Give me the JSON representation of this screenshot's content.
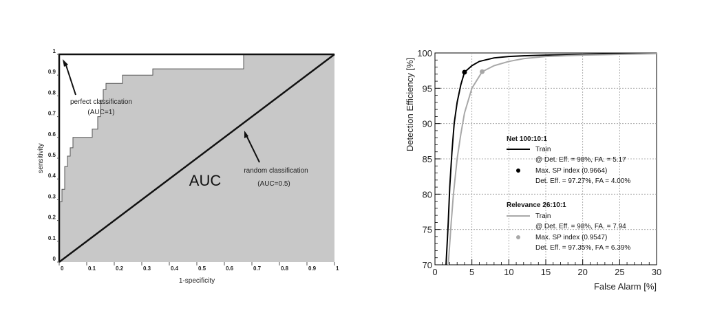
{
  "chart_data": [
    {
      "type": "line",
      "xlabel": "1-specificity",
      "ylabel": "sensitivity",
      "xlim": [
        0,
        1
      ],
      "ylim": [
        0,
        1
      ],
      "x_ticks": [
        "0",
        "0.1",
        "0.2",
        "0.3",
        "0.4",
        "0.5",
        "0.6",
        "0.7",
        "0.8",
        "0.9",
        "1"
      ],
      "y_ticks": [
        "0",
        "0.1",
        "0.2",
        "0.3",
        "0.4",
        "0.5",
        "0.6",
        "0.7",
        "0.8",
        "0.9",
        "1"
      ],
      "area_label": "AUC",
      "series": [
        {
          "role": "empirical ROC curve (area shaded)",
          "points": [
            [
              0,
              0
            ],
            [
              0,
              0.29
            ],
            [
              0.01,
              0.29
            ],
            [
              0.01,
              0.35
            ],
            [
              0.02,
              0.35
            ],
            [
              0.02,
              0.46
            ],
            [
              0.03,
              0.46
            ],
            [
              0.03,
              0.51
            ],
            [
              0.04,
              0.51
            ],
            [
              0.04,
              0.55
            ],
            [
              0.05,
              0.55
            ],
            [
              0.05,
              0.6
            ],
            [
              0.12,
              0.6
            ],
            [
              0.12,
              0.64
            ],
            [
              0.14,
              0.64
            ],
            [
              0.14,
              0.7
            ],
            [
              0.15,
              0.7
            ],
            [
              0.15,
              0.78
            ],
            [
              0.16,
              0.78
            ],
            [
              0.16,
              0.83
            ],
            [
              0.17,
              0.83
            ],
            [
              0.17,
              0.86
            ],
            [
              0.23,
              0.86
            ],
            [
              0.23,
              0.9
            ],
            [
              0.34,
              0.9
            ],
            [
              0.34,
              0.93
            ],
            [
              0.67,
              0.93
            ],
            [
              0.67,
              1
            ],
            [
              1,
              1
            ]
          ]
        },
        {
          "role": "perfect classification",
          "points": [
            [
              0,
              0
            ],
            [
              0,
              1
            ],
            [
              1,
              1
            ]
          ]
        },
        {
          "role": "random classification",
          "points": [
            [
              0,
              0
            ],
            [
              1,
              1
            ]
          ]
        }
      ],
      "annotations": [
        {
          "line1": "perfect classification",
          "line2": "(AUC=1)"
        },
        {
          "line1": "random classification",
          "line2": "(AUC=0.5)"
        }
      ]
    },
    {
      "type": "line",
      "xlabel": "False Alarm [%]",
      "ylabel": "Detection Efficiency [%]",
      "xlim": [
        0,
        30
      ],
      "ylim": [
        70,
        100
      ],
      "x_ticks": [
        0,
        5,
        10,
        15,
        20,
        25,
        30
      ],
      "y_ticks": [
        70,
        75,
        80,
        85,
        90,
        95,
        100
      ],
      "grid": true,
      "legend_position": "bottom-right",
      "legend": {
        "group1": {
          "title": "Net 100:10:1",
          "line_label": "Train",
          "line_detail": "@ Det. Eff. = 98%, FA. = 5.17",
          "marker_label": "Max. SP index (0.9664)",
          "marker_detail": "Det. Eff. = 97.27%, FA = 4.00%"
        },
        "group2": {
          "title": "Relevance 26:10:1",
          "line_label": "Train",
          "line_detail": "@ Det. Eff. = 98%, FA. = 7.94",
          "marker_label": "Max. SP index (0.9547)",
          "marker_detail": "Det. Eff. = 97.35%, FA = 6.39%"
        }
      },
      "series": [
        {
          "name": "Net 100:10:1 Train",
          "color": "#000000",
          "x": [
            1.5,
            1.8,
            2.0,
            2.3,
            2.6,
            3.0,
            3.5,
            4.0,
            5.0,
            6.0,
            8.0,
            10,
            12,
            15,
            20,
            25,
            30
          ],
          "y": [
            70,
            76,
            81,
            86,
            90,
            93,
            95.5,
            97.27,
            98.2,
            98.8,
            99.3,
            99.5,
            99.6,
            99.7,
            99.8,
            99.9,
            99.95
          ]
        },
        {
          "name": "Relevance 26:10:1 Train",
          "color": "#a8a8a8",
          "x": [
            1.8,
            2.2,
            2.5,
            3.0,
            3.5,
            4.0,
            5.0,
            6.39,
            8.0,
            10,
            12,
            15,
            20,
            25,
            30
          ],
          "y": [
            70,
            76,
            80,
            85,
            88.5,
            91.5,
            95,
            97.35,
            98.2,
            98.8,
            99.2,
            99.5,
            99.7,
            99.8,
            99.9
          ]
        }
      ],
      "markers": [
        {
          "x": 4.0,
          "y": 97.27,
          "color": "#000000"
        },
        {
          "x": 6.39,
          "y": 97.35,
          "color": "#a8a8a8"
        }
      ]
    }
  ]
}
